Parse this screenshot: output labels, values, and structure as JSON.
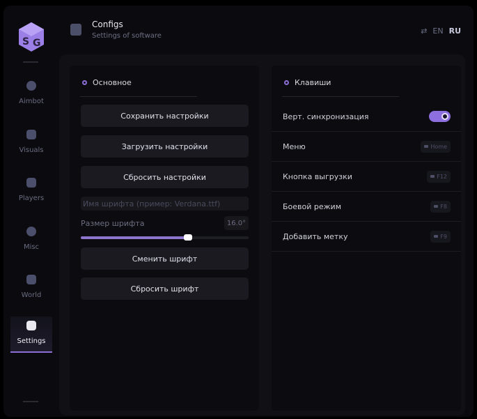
{
  "header": {
    "title": "Configs",
    "subtitle": "Settings of software",
    "lang_en": "EN",
    "lang_ru": "RU",
    "selected_lang": "RU"
  },
  "sidebar": {
    "items": [
      {
        "label": "Aimbot",
        "icon": "skull-icon"
      },
      {
        "label": "Visuals",
        "icon": "vr-headset-icon"
      },
      {
        "label": "Players",
        "icon": "players-icon"
      },
      {
        "label": "Misc",
        "icon": "chat-icon"
      },
      {
        "label": "World",
        "icon": "briefcase-icon"
      },
      {
        "label": "Settings",
        "icon": "list-icon",
        "active": true
      }
    ]
  },
  "main": {
    "title": "Основное",
    "save": "Сохранить настройки",
    "load": "Загрузить настройки",
    "reset": "Сбросить настройки",
    "font_placeholder": "Имя шрифта (пример: Verdana.ttf)",
    "font_size_label": "Размер шрифта",
    "font_size_value": "16.0°",
    "font_size_fill_percent": 64,
    "change_font": "Сменить шрифт",
    "reset_font": "Сбросить шрифт"
  },
  "keys": {
    "title": "Клавиши",
    "rows": [
      {
        "label": "Верт. синхронизация",
        "toggle": true
      },
      {
        "label": "Меню",
        "key": "Home"
      },
      {
        "label": "Кнопка выгрузки",
        "key": "F12"
      },
      {
        "label": "Боевой режим",
        "key": "F8"
      },
      {
        "label": "Добавить метку",
        "key": "F9"
      }
    ]
  },
  "colors": {
    "accent": "#8d6fe0",
    "background": "#0b0b0f"
  }
}
